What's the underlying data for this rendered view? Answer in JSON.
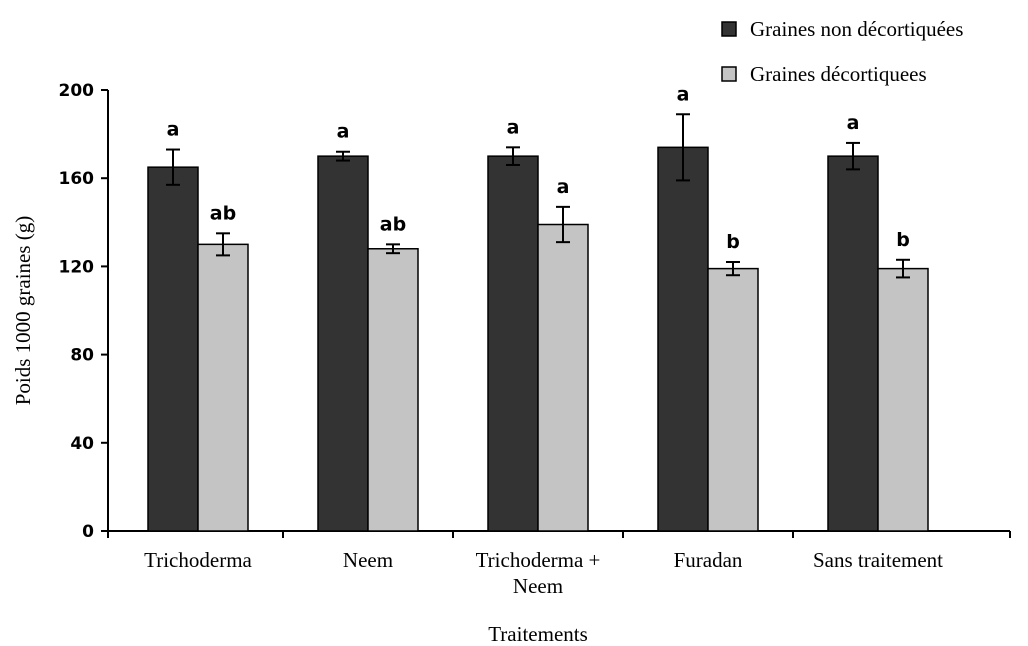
{
  "chart_data": {
    "type": "bar",
    "title": "",
    "xlabel": "Traitements",
    "ylabel": "Poids 1000 graines (g)",
    "ylim": [
      0,
      200
    ],
    "yticks": [
      0,
      40,
      80,
      120,
      160,
      200
    ],
    "grid": false,
    "legend_position": "top-right",
    "categories": [
      "Trichoderma",
      "Neem",
      "Trichoderma + Neem",
      "Furadan",
      "Sans traitement"
    ],
    "category_lines": [
      [
        "Trichoderma"
      ],
      [
        "Neem"
      ],
      [
        "Trichoderma +",
        "Neem"
      ],
      [
        "Furadan"
      ],
      [
        "Sans traitement"
      ]
    ],
    "series": [
      {
        "name": "Graines non décortiquées",
        "color": "#333333",
        "values": [
          165,
          170,
          170,
          174,
          170
        ],
        "errors": [
          8,
          2,
          4,
          15,
          6
        ],
        "letters": [
          "a",
          "a",
          "a",
          "a",
          "a"
        ]
      },
      {
        "name": "Graines décortiquees",
        "color": "#c4c4c4",
        "values": [
          130,
          128,
          139,
          119,
          119
        ],
        "errors": [
          5,
          2,
          8,
          3,
          4
        ],
        "letters": [
          "ab",
          "ab",
          "a",
          "b",
          "b"
        ]
      }
    ]
  }
}
